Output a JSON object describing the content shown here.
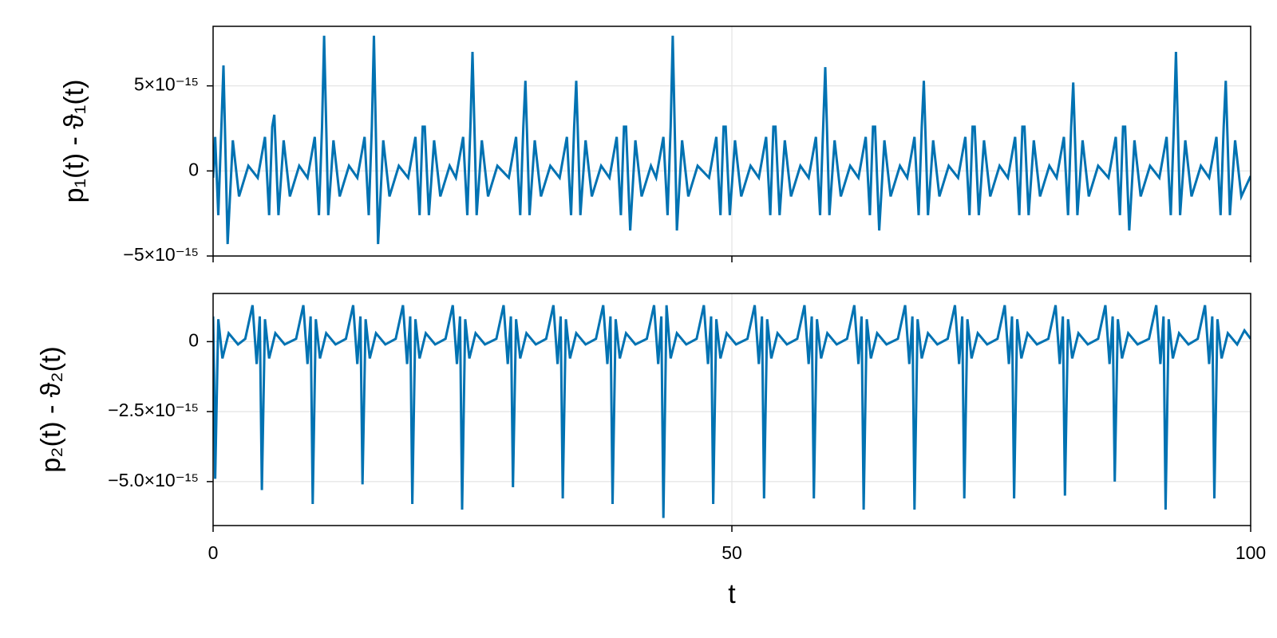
{
  "chart_data": [
    {
      "type": "line",
      "ylabel": "p₁(t) - ϑ₁(t)",
      "xlim": [
        0,
        100
      ],
      "xticks": [
        0,
        50,
        100
      ],
      "xtick_labels": false,
      "ylim": [
        -5e-15,
        8.5e-15
      ],
      "yticks": [
        {
          "value": -5e-15,
          "label": "−5×10⁻¹⁵"
        },
        0,
        {
          "value": 5e-15,
          "label": "5×10⁻¹⁵"
        }
      ],
      "grid": true,
      "series": [
        {
          "color": "#0072b2",
          "x": [
            0,
            0.2,
            0.5,
            0.8,
            1.0,
            1.4,
            1.9,
            2.5,
            3.4,
            4.3,
            5.0,
            5.4,
            5.7,
            5.9,
            6.3,
            6.8,
            7.4,
            8.3,
            9.1,
            9.8,
            10.2,
            10.5,
            10.7,
            11.1,
            11.6,
            12.2,
            13.1,
            13.9,
            14.6,
            15.0,
            15.3,
            15.5,
            15.9,
            16.4,
            17.0,
            17.9,
            18.8,
            19.5,
            19.9,
            20.2,
            20.4,
            20.8,
            21.3,
            21.9,
            22.8,
            23.4,
            24.1,
            24.5,
            24.8,
            25.0,
            25.4,
            25.9,
            26.5,
            27.4,
            28.5,
            29.2,
            29.6,
            29.9,
            30.1,
            30.5,
            31.0,
            31.6,
            32.5,
            33.4,
            34.1,
            34.5,
            34.8,
            35.0,
            35.4,
            35.9,
            36.5,
            37.4,
            38.2,
            38.9,
            39.3,
            39.6,
            39.8,
            40.2,
            40.7,
            41.3,
            42.2,
            42.7,
            43.4,
            43.8,
            44.1,
            44.3,
            44.7,
            45.2,
            45.8,
            46.7,
            47.8,
            48.5,
            48.9,
            49.2,
            49.4,
            49.8,
            50.3,
            50.9,
            51.8,
            52.6,
            53.3,
            53.7,
            54.0,
            54.2,
            54.6,
            55.1,
            55.7,
            56.6,
            57.4,
            58.1,
            58.5,
            58.8,
            59.0,
            59.4,
            59.9,
            60.5,
            61.4,
            62.2,
            62.9,
            63.3,
            63.6,
            63.8,
            64.2,
            64.7,
            65.3,
            66.2,
            66.9,
            67.6,
            68.0,
            68.3,
            68.5,
            68.9,
            69.4,
            70.0,
            70.9,
            71.8,
            72.5,
            72.9,
            73.2,
            73.4,
            73.8,
            74.3,
            74.9,
            75.8,
            76.6,
            77.3,
            77.7,
            78.0,
            78.2,
            78.6,
            79.1,
            79.7,
            80.6,
            81.3,
            82.0,
            82.4,
            82.7,
            82.9,
            83.3,
            83.8,
            84.4,
            85.3,
            86.3,
            87.0,
            87.4,
            87.7,
            87.9,
            88.3,
            88.8,
            89.4,
            90.3,
            91.2,
            91.9,
            92.3,
            92.6,
            92.8,
            93.2,
            93.7,
            94.3,
            95.2,
            96.0,
            96.7,
            97.1,
            97.4,
            97.6,
            98.0,
            98.5,
            99.1,
            100
          ],
          "values": [
            -4e-16,
            2e-15,
            -2.6e-15,
            2.6e-15,
            6.2e-15,
            -4.3e-15,
            1.8e-15,
            -1.5e-15,
            3e-16,
            -4e-16,
            2e-15,
            -2.6e-15,
            2.6e-15,
            3.3e-15,
            -2.6e-15,
            1.8e-15,
            -1.5e-15,
            3e-16,
            -4e-16,
            2e-15,
            -2.6e-15,
            2.6e-15,
            7.95e-15,
            -2.6e-15,
            1.8e-15,
            -1.5e-15,
            3e-16,
            -4e-16,
            2e-15,
            -2.6e-15,
            2.6e-15,
            7.95e-15,
            -4.3e-15,
            1.8e-15,
            -1.5e-15,
            3e-16,
            -4e-16,
            2e-15,
            -2.6e-15,
            2.6e-15,
            2.6e-15,
            -2.6e-15,
            1.8e-15,
            -1.5e-15,
            3e-16,
            -4e-16,
            2e-15,
            -2.6e-15,
            2.6e-15,
            7e-15,
            -2.6e-15,
            1.8e-15,
            -1.5e-15,
            3e-16,
            -4e-16,
            2e-15,
            -2.6e-15,
            2.6e-15,
            5.3e-15,
            -2.6e-15,
            1.8e-15,
            -1.5e-15,
            3e-16,
            -4e-16,
            2e-15,
            -2.6e-15,
            2.6e-15,
            5.3e-15,
            -2.6e-15,
            1.8e-15,
            -1.5e-15,
            3e-16,
            -4e-16,
            2e-15,
            -2.6e-15,
            2.6e-15,
            2.6e-15,
            -3.5e-15,
            1.8e-15,
            -1.5e-15,
            3e-16,
            -4e-16,
            2e-15,
            -2.6e-15,
            2.6e-15,
            7.95e-15,
            -3.5e-15,
            1.8e-15,
            -1.5e-15,
            3e-16,
            -4e-16,
            2e-15,
            -2.6e-15,
            2.6e-15,
            2.6e-15,
            -2.6e-15,
            1.8e-15,
            -1.5e-15,
            3e-16,
            -4e-16,
            2e-15,
            -2.6e-15,
            2.6e-15,
            2.6e-15,
            -2.6e-15,
            1.8e-15,
            -1.5e-15,
            3e-16,
            -4e-16,
            2e-15,
            -2.6e-15,
            2.6e-15,
            6.1e-15,
            -2.6e-15,
            1.8e-15,
            -1.5e-15,
            3e-16,
            -4e-16,
            2e-15,
            -2.6e-15,
            2.6e-15,
            2.6e-15,
            -3.5e-15,
            1.8e-15,
            -1.5e-15,
            3e-16,
            -4e-16,
            2e-15,
            -2.6e-15,
            2.6e-15,
            5.3e-15,
            -2.6e-15,
            1.8e-15,
            -1.5e-15,
            3e-16,
            -4e-16,
            2e-15,
            -2.6e-15,
            2.6e-15,
            2.6e-15,
            -2.6e-15,
            1.8e-15,
            -1.5e-15,
            3e-16,
            -4e-16,
            2e-15,
            -2.6e-15,
            2.6e-15,
            2.6e-15,
            -2.6e-15,
            1.8e-15,
            -1.5e-15,
            3e-16,
            -4e-16,
            2e-15,
            -2.6e-15,
            2.6e-15,
            5.2e-15,
            -2.6e-15,
            1.8e-15,
            -1.5e-15,
            3e-16,
            -4e-16,
            2e-15,
            -2.6e-15,
            2.6e-15,
            2.6e-15,
            -3.5e-15,
            1.8e-15,
            -1.5e-15,
            3e-16,
            -4e-16,
            2e-15,
            -2.6e-15,
            2.6e-15,
            7e-15,
            -2.6e-15,
            1.8e-15,
            -1.5e-15,
            3e-16,
            -4e-16,
            2e-15,
            -2.6e-15,
            2.6e-15,
            5.3e-15,
            -2.6e-15,
            1.8e-15,
            -1.5e-15,
            -3e-16
          ]
        }
      ]
    },
    {
      "type": "line",
      "ylabel": "p₂(t) - ϑ₂(t)",
      "xlabel": "t",
      "xlim": [
        0,
        100
      ],
      "xticks": [
        0,
        50,
        100
      ],
      "ylim": [
        -6.57e-15,
        1.72e-15
      ],
      "yticks": [
        {
          "value": -5e-15,
          "label": "−5.0×10⁻¹⁵"
        },
        {
          "value": -2.5e-15,
          "label": "−2.5×10⁻¹⁵"
        },
        0
      ],
      "grid": true,
      "series": [
        {
          "color": "#0072b2",
          "x": [
            0,
            0.1,
            0.2,
            0.5,
            0.9,
            1.5,
            2.4,
            3.1,
            3.8,
            4.2,
            4.5,
            4.7,
            5.0,
            5.4,
            6.0,
            6.9,
            8.0,
            8.7,
            9.1,
            9.4,
            9.6,
            9.9,
            10.3,
            10.9,
            11.8,
            12.8,
            13.5,
            13.9,
            14.2,
            14.4,
            14.7,
            15.1,
            15.7,
            16.6,
            17.6,
            18.3,
            18.7,
            19.0,
            19.2,
            19.5,
            19.9,
            20.5,
            21.4,
            22.4,
            23.1,
            23.5,
            23.8,
            24.0,
            24.3,
            24.7,
            25.3,
            26.2,
            27.3,
            28.0,
            28.4,
            28.7,
            28.9,
            29.2,
            29.6,
            30.2,
            31.1,
            32.1,
            32.8,
            33.2,
            33.5,
            33.7,
            34.0,
            34.4,
            35.0,
            35.9,
            36.9,
            37.6,
            38.0,
            38.3,
            38.5,
            38.8,
            39.2,
            39.8,
            40.7,
            41.8,
            42.5,
            42.9,
            43.2,
            43.4,
            43.7,
            44.1,
            44.7,
            45.6,
            46.6,
            47.3,
            47.7,
            48.0,
            48.2,
            48.5,
            48.9,
            49.5,
            50.4,
            51.5,
            52.2,
            52.6,
            52.9,
            53.1,
            53.4,
            53.8,
            54.4,
            55.3,
            56.3,
            57.0,
            57.4,
            57.7,
            57.9,
            58.2,
            58.6,
            59.2,
            60.1,
            61.1,
            61.8,
            62.2,
            62.5,
            62.7,
            63.0,
            63.4,
            64.0,
            64.9,
            66.0,
            66.7,
            67.1,
            67.4,
            67.6,
            67.9,
            68.3,
            68.9,
            69.8,
            70.8,
            71.5,
            71.9,
            72.2,
            72.4,
            72.7,
            73.1,
            73.7,
            74.6,
            75.6,
            76.3,
            76.7,
            77.0,
            77.2,
            77.5,
            77.9,
            78.5,
            79.4,
            80.5,
            81.2,
            81.6,
            81.9,
            82.1,
            82.4,
            82.8,
            83.4,
            84.3,
            85.3,
            86.0,
            86.4,
            86.7,
            86.9,
            87.2,
            87.6,
            88.2,
            89.1,
            90.2,
            90.9,
            91.3,
            91.6,
            91.8,
            92.1,
            92.5,
            93.1,
            94.0,
            94.9,
            95.6,
            96.0,
            96.3,
            96.5,
            96.8,
            97.2,
            97.8,
            98.7,
            99.4,
            100
          ],
          "values": [
            9e-16,
            -1.2e-15,
            -4.9e-15,
            8e-16,
            -6e-16,
            3e-16,
            -1e-16,
            1e-16,
            1.3e-15,
            -8e-16,
            9e-16,
            -5.3e-15,
            8e-16,
            -6e-16,
            3e-16,
            -1e-16,
            1e-16,
            1.3e-15,
            -8e-16,
            9e-16,
            -5.8e-15,
            8e-16,
            -6e-16,
            3e-16,
            -1e-16,
            1e-16,
            1.3e-15,
            -8e-16,
            9e-16,
            -5.1e-15,
            8e-16,
            -6e-16,
            3e-16,
            -1e-16,
            1e-16,
            1.3e-15,
            -8e-16,
            9e-16,
            -5.8e-15,
            8e-16,
            -6e-16,
            3e-16,
            -1e-16,
            1e-16,
            1.3e-15,
            -8e-16,
            9e-16,
            -6e-15,
            8e-16,
            -6e-16,
            3e-16,
            -1e-16,
            1e-16,
            1.3e-15,
            -8e-16,
            9e-16,
            -5.2e-15,
            8e-16,
            -6e-16,
            3e-16,
            -1e-16,
            1e-16,
            1.3e-15,
            -8e-16,
            9e-16,
            -5.6e-15,
            8e-16,
            -6e-16,
            3e-16,
            -1e-16,
            1e-16,
            1.3e-15,
            -8e-16,
            9e-16,
            -5.8e-15,
            8e-16,
            -6e-16,
            3e-16,
            -1e-16,
            1e-16,
            1.3e-15,
            -8e-16,
            9e-16,
            -6.3e-15,
            1.3e-15,
            -6e-16,
            3e-16,
            -1e-16,
            1e-16,
            1.3e-15,
            -8e-16,
            9e-16,
            -5.8e-15,
            8e-16,
            -6e-16,
            3e-16,
            -1e-16,
            1e-16,
            1.3e-15,
            -8e-16,
            9e-16,
            -5.6e-15,
            8e-16,
            -6e-16,
            3e-16,
            -1e-16,
            1e-16,
            1.3e-15,
            -8e-16,
            9e-16,
            -5.6e-15,
            8e-16,
            -6e-16,
            3e-16,
            -1e-16,
            1e-16,
            1.3e-15,
            -8e-16,
            9e-16,
            -6e-15,
            8e-16,
            -6e-16,
            3e-16,
            -1e-16,
            1e-16,
            1.3e-15,
            -8e-16,
            9e-16,
            -6e-15,
            8e-16,
            -6e-16,
            3e-16,
            -1e-16,
            1e-16,
            1.3e-15,
            -8e-16,
            9e-16,
            -5.6e-15,
            8e-16,
            -6e-16,
            3e-16,
            -1e-16,
            1e-16,
            1.3e-15,
            -8e-16,
            9e-16,
            -5.6e-15,
            8e-16,
            -6e-16,
            3e-16,
            -1e-16,
            1e-16,
            1.3e-15,
            -8e-16,
            9e-16,
            -5.5e-15,
            8e-16,
            -6e-16,
            3e-16,
            -1e-16,
            1e-16,
            1.3e-15,
            -8e-16,
            9e-16,
            -5e-15,
            8e-16,
            -6e-16,
            3e-16,
            -1e-16,
            1e-16,
            1.3e-15,
            -8e-16,
            9e-16,
            -6e-15,
            8e-16,
            -6e-16,
            3e-16,
            -1e-16,
            1e-16,
            1.3e-15,
            -8e-16,
            9e-16,
            -5.6e-15,
            8e-16,
            -6e-16,
            3e-16,
            -1e-16,
            4e-16,
            1e-16
          ]
        }
      ]
    }
  ]
}
